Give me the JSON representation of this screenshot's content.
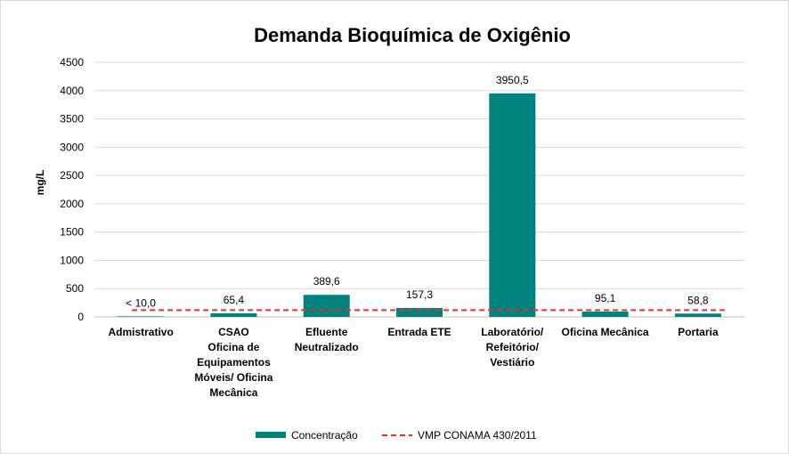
{
  "chart_data": {
    "type": "bar",
    "title": "Demanda Bioquímica de Oxigênio",
    "ylabel": "mg/L",
    "xlabel": "",
    "ylim": [
      0,
      4500
    ],
    "yticks": [
      "0",
      "500",
      "1000",
      "1500",
      "2000",
      "2500",
      "3000",
      "3500",
      "4000",
      "4500"
    ],
    "grid": true,
    "legend_position": "bottom",
    "categories": [
      [
        "Admistrativo"
      ],
      [
        "CSAO",
        "Oficina de",
        "Equipamentos",
        "Móveis/ Oficina",
        "Mecânica"
      ],
      [
        "Efluente",
        "Neutralizado"
      ],
      [
        "Entrada ETE"
      ],
      [
        "Laboratório/",
        "Refeitório/",
        "Vestiário"
      ],
      [
        "Oficina Mecânica"
      ],
      [
        "Portaria"
      ]
    ],
    "series": [
      {
        "name": "Concentração",
        "color": "#00827f",
        "values": [
          10.0,
          65.4,
          389.6,
          157.3,
          3950.5,
          95.1,
          58.8
        ],
        "labels": [
          "< 10,0",
          "65,4",
          "389,6",
          "157,3",
          "3950,5",
          "95,1",
          "58,8"
        ]
      },
      {
        "name": "VMP CONAMA 430/2011",
        "color": "#e8302a",
        "style": "dashed",
        "value": 120
      }
    ]
  }
}
